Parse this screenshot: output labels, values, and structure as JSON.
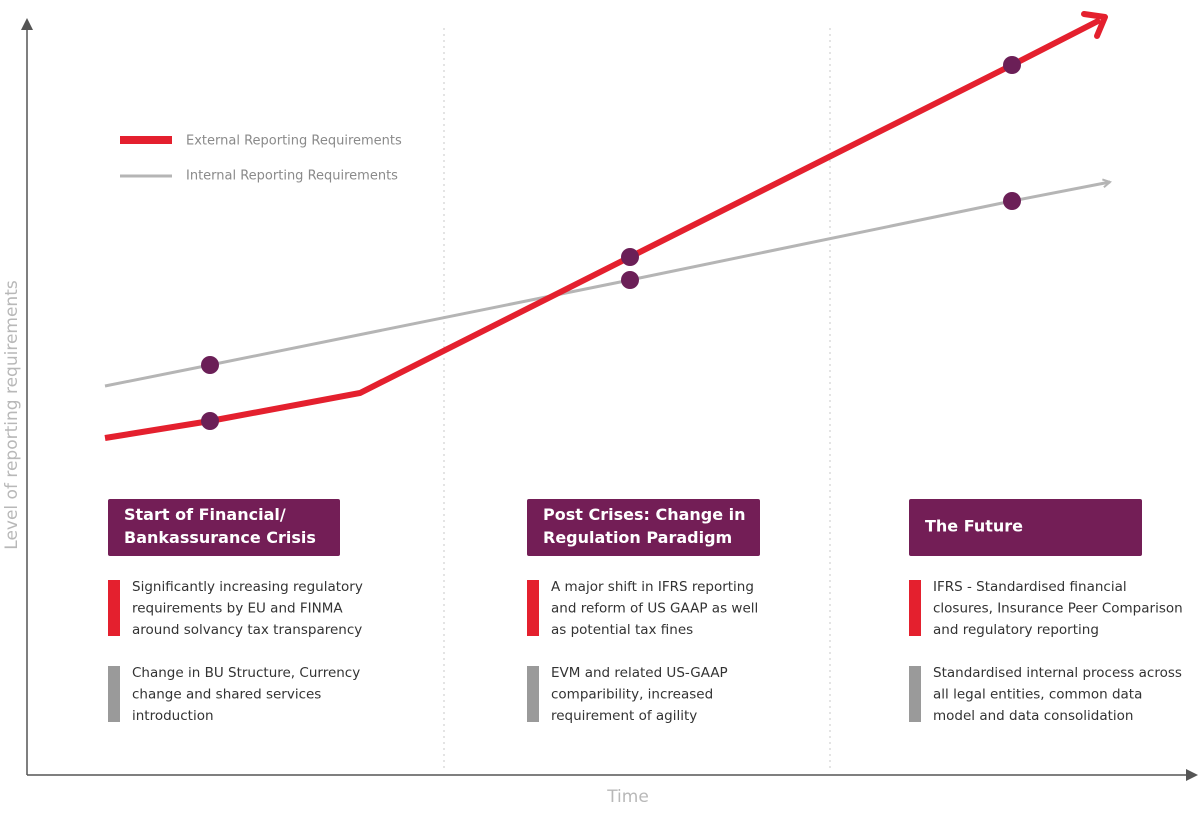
{
  "axes": {
    "y_label": "Level of reporting requirements",
    "x_label": "Time"
  },
  "legend": [
    {
      "label": "External Reporting Requirements"
    },
    {
      "label": "Internal Reporting Requirements"
    }
  ],
  "phases": [
    {
      "title_lines": [
        "Start of Financial/",
        "Bankassurance Crisis"
      ],
      "external": [
        "Significantly increasing regulatory",
        "requirements by EU and FINMA",
        "around solvancy tax transparency"
      ],
      "internal": [
        "Change in BU Structure, Currency",
        "change and shared services",
        "introduction"
      ]
    },
    {
      "title_lines": [
        "Post Crises: Change in",
        "Regulation Paradigm"
      ],
      "external": [
        "A major shift in IFRS reporting",
        "and reform of US GAAP as well",
        "as potential tax fines"
      ],
      "internal": [
        "EVM and related US-GAAP",
        "comparibility, increased",
        "requirement of agility"
      ]
    },
    {
      "title_lines": [
        "The Future"
      ],
      "external": [
        "IFRS - Standardised financial",
        "closures, Insurance Peer Comparison",
        "and regulatory reporting"
      ],
      "internal": [
        "Standardised internal process across",
        "all legal entities, common data",
        "model and data consolidation"
      ]
    }
  ]
}
